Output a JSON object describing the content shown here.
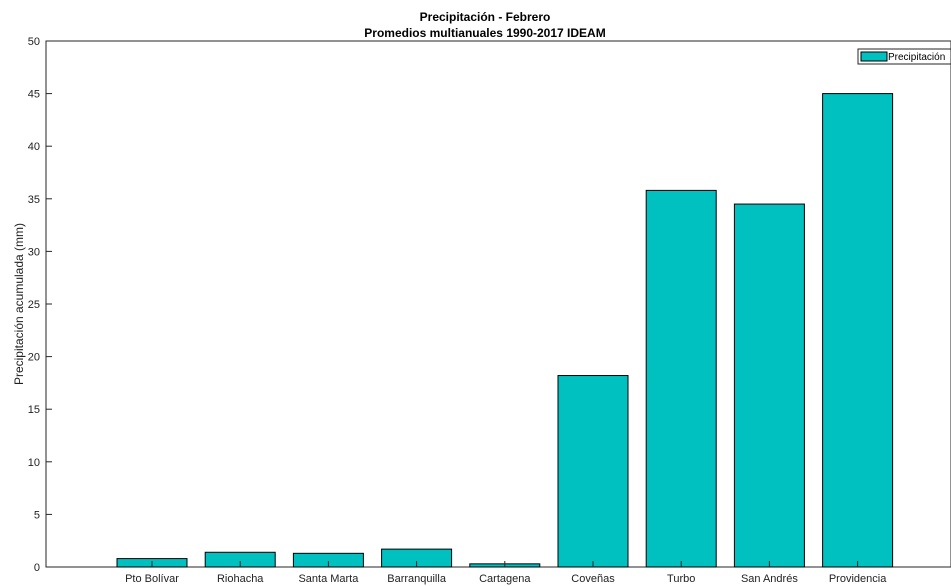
{
  "chart_data": {
    "type": "bar",
    "title": "Precipitación - Febrero",
    "subtitle": "Promedios multianuales 1990-2017 IDEAM",
    "xlabel": "",
    "ylabel": "Precipitación acumulada (mm)",
    "categories": [
      "Pto Bolívar",
      "Riohacha",
      "Santa Marta",
      "Barranquilla",
      "Cartagena",
      "Coveñas",
      "Turbo",
      "San Andrés",
      "Providencia"
    ],
    "series": [
      {
        "name": "Precipitación",
        "values": [
          0.8,
          1.4,
          1.3,
          1.7,
          0.3,
          18.2,
          35.8,
          34.5,
          45.0
        ]
      }
    ],
    "ylim": [
      0,
      50
    ],
    "yticks": [
      0,
      5,
      10,
      15,
      20,
      25,
      30,
      35,
      40,
      45,
      50
    ],
    "legend_position": "top-right",
    "grid": false,
    "bar_color": "#00C0C0",
    "bar_edge_color": "#000000"
  }
}
